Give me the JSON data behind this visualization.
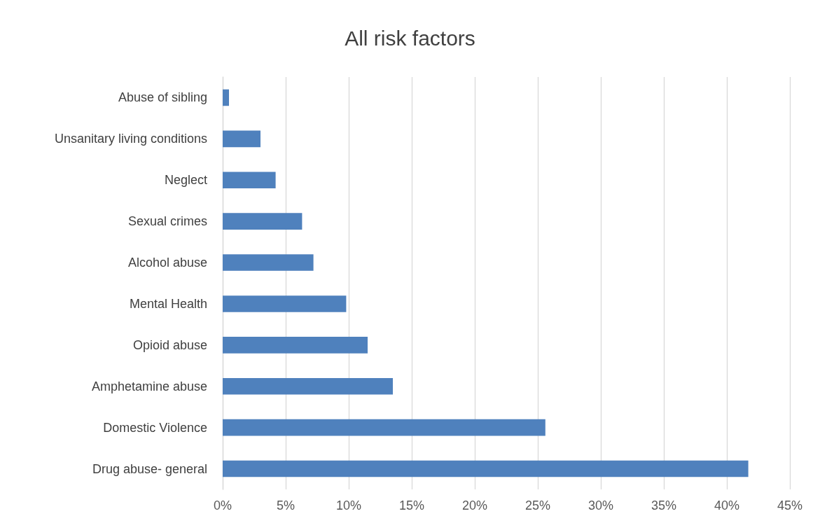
{
  "chart_data": {
    "type": "bar",
    "orientation": "horizontal",
    "title": "All risk factors",
    "categories": [
      "Abuse of sibling",
      "Unsanitary living conditions",
      "Neglect",
      "Sexual crimes",
      "Alcohol abuse",
      "Mental Health",
      "Opioid abuse",
      "Amphetamine abuse",
      "Domestic Violence",
      "Drug abuse- general"
    ],
    "values": [
      0.5,
      3.0,
      4.2,
      6.3,
      7.2,
      9.8,
      11.5,
      13.5,
      25.6,
      41.7
    ],
    "color": "#4f81bd",
    "xlim": [
      0,
      45
    ],
    "xticks": [
      {
        "value": 0,
        "label": "0%"
      },
      {
        "value": 5,
        "label": "5%"
      },
      {
        "value": 10,
        "label": "10%"
      },
      {
        "value": 15,
        "label": "15%"
      },
      {
        "value": 20,
        "label": "20%"
      },
      {
        "value": 25,
        "label": "25%"
      },
      {
        "value": 30,
        "label": "30%"
      },
      {
        "value": 35,
        "label": "35%"
      },
      {
        "value": 40,
        "label": "40%"
      },
      {
        "value": 45,
        "label": "45%"
      }
    ],
    "grid": "x"
  }
}
